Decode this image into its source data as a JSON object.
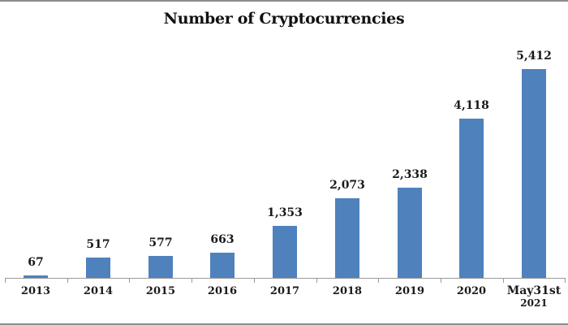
{
  "chart_data": {
    "type": "bar",
    "title": "Number of Cryptocurrencies",
    "categories": [
      "2013",
      "2014",
      "2015",
      "2016",
      "2017",
      "2018",
      "2019",
      "2020",
      "May31st 2021"
    ],
    "values": [
      67,
      517,
      577,
      663,
      1353,
      2073,
      2338,
      4118,
      5412
    ],
    "data_labels": [
      "67",
      "517",
      "577",
      "663",
      "1,353",
      "2,073",
      "2,338",
      "4,118",
      "5,412"
    ],
    "xlabel": "",
    "ylabel": "",
    "ylim": [
      0,
      5500
    ],
    "grid": false,
    "legend": null,
    "bar_color": "#4f81bd"
  },
  "chart": {
    "title": "Number of Cryptocurrencies",
    "bar_color": "#4f81bd",
    "axis_color": "#9a9a9a"
  }
}
